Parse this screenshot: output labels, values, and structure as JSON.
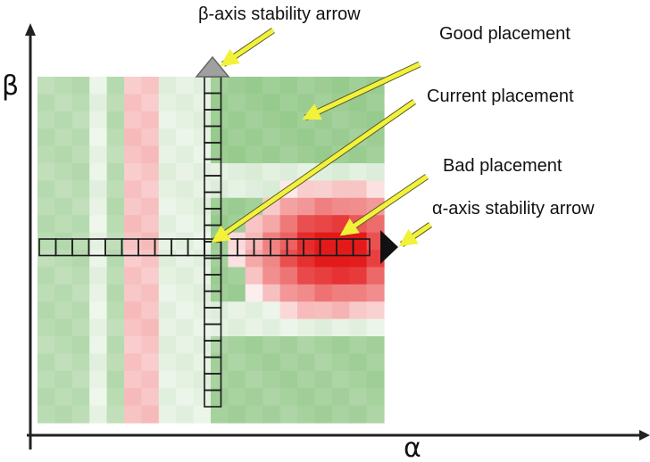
{
  "axes": {
    "x_label": "α",
    "y_label": "β"
  },
  "annotations": {
    "beta_arrow": "β-axis stability arrow",
    "good": "Good placement",
    "current": "Current placement",
    "bad": "Bad placement",
    "alpha_arrow": "α-axis stability arrow"
  },
  "colors": {
    "good": "#5aab4a",
    "bad": "#e31a1a",
    "pointer": "#f2f23a",
    "beta_arrowhead": "#a0a0a0",
    "alpha_arrowhead": "#111111"
  }
}
